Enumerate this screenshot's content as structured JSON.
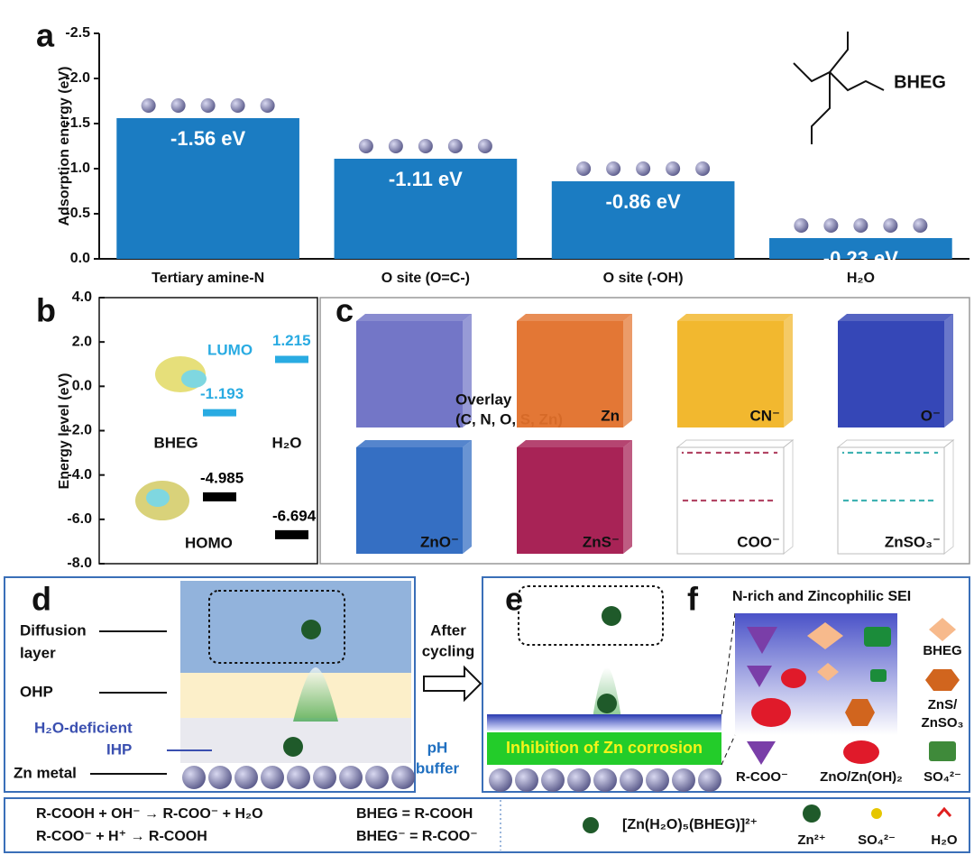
{
  "chart_data": [
    {
      "type": "bar",
      "panel": "a",
      "y_label": "Adsorption energy (eV)",
      "categories": [
        "Tertiary amine-N",
        "O site (O=C-)",
        "O site (-OH)",
        "H₂O"
      ],
      "values": [
        -1.56,
        -1.11,
        -0.86,
        -0.23
      ],
      "value_labels": [
        "-1.56 eV",
        "-1.11 eV",
        "-0.86 eV",
        "-0.23 eV"
      ],
      "color": "#1b7cc2",
      "ylim": [
        0,
        -2.5
      ],
      "yticks": [
        {
          "value": -2.5,
          "label": "-2.5"
        },
        {
          "value": -2,
          "label": "-2.0"
        },
        {
          "value": -1.5,
          "label": "-1.5"
        },
        {
          "value": -1,
          "label": "-1.0"
        },
        {
          "value": -0.5,
          "label": "-0.5"
        },
        {
          "value": 0,
          "label": "0.0"
        }
      ],
      "molecule_label": "BHEG"
    },
    {
      "type": "energy-levels",
      "panel": "b",
      "y_label": "Energy level (eV)",
      "levels": [
        "LUMO",
        "HOMO"
      ],
      "level_colors": [
        "#29abe2",
        "#000000"
      ],
      "series": [
        {
          "name": "BHEG",
          "values": [
            -1.193,
            -4.985
          ]
        },
        {
          "name": "H₂O",
          "values": [
            1.215,
            -6.694
          ]
        }
      ],
      "ylim": [
        -8,
        4
      ],
      "yticks": [
        {
          "value": 4,
          "label": "4.0"
        },
        {
          "value": 2,
          "label": "2.0"
        },
        {
          "value": 0,
          "label": "0.0"
        },
        {
          "value": -2,
          "label": "-2.0"
        },
        {
          "value": -4,
          "label": "-4.0"
        },
        {
          "value": -6,
          "label": "-6.0"
        },
        {
          "value": -8,
          "label": "-8.0"
        }
      ]
    }
  ],
  "panel_c": {
    "label": "c",
    "cubes": [
      {
        "lines": [
          "Overlay",
          "(C, N, O, S, Zn)"
        ],
        "color": "#6b6fc4"
      },
      {
        "lines": [
          "Zn"
        ],
        "color": "#e2702a"
      },
      {
        "lines": [
          "CN⁻"
        ],
        "color": "#f1b424"
      },
      {
        "lines": [
          "O⁻"
        ],
        "color": "#2a3db3"
      },
      {
        "lines": [
          "ZnO⁻"
        ],
        "color": "#2a67c0"
      },
      {
        "lines": [
          "ZnS⁻"
        ],
        "color": "#a3174d"
      },
      {
        "lines": [
          "COO⁻"
        ],
        "color": "#ffffff"
      },
      {
        "lines": [
          "ZnSO₃⁻"
        ],
        "color": "#ffffff"
      }
    ]
  },
  "panel_d": {
    "label": "d",
    "diffusion_layer": [
      "Diffusion",
      "layer"
    ],
    "ohp": "OHP",
    "ihp": [
      "H₂O-deficient",
      "IHP"
    ],
    "zn_metal": "Zn metal",
    "ph_buffer": [
      "pH",
      "buffer"
    ]
  },
  "arrow": [
    "After",
    "cycling"
  ],
  "panel_e": {
    "label": "e",
    "inhibition": "Inhibition of Zn corrosion"
  },
  "panel_f": {
    "label": "f",
    "title": "N-rich and Zincophilic SEI",
    "legend": [
      "BHEG",
      "ZnS/",
      "ZnSO₃",
      "R-COO⁻",
      "ZnO/Zn(OH)₂",
      "SO₄²⁻"
    ]
  },
  "footer": {
    "equations": [
      "R-COOH + OH⁻ → R-COO⁻ + H₂O",
      "R-COO⁻ + H⁺ → R-COOH"
    ],
    "definitions": [
      "BHEG = R-COOH",
      "BHEG⁻ = R-COO⁻"
    ],
    "complex": "[Zn(H₂O)₅(BHEG)]²⁺",
    "zn_ion": "Zn²⁺",
    "sulfate": "SO₄²⁻",
    "water": "H₂O"
  }
}
